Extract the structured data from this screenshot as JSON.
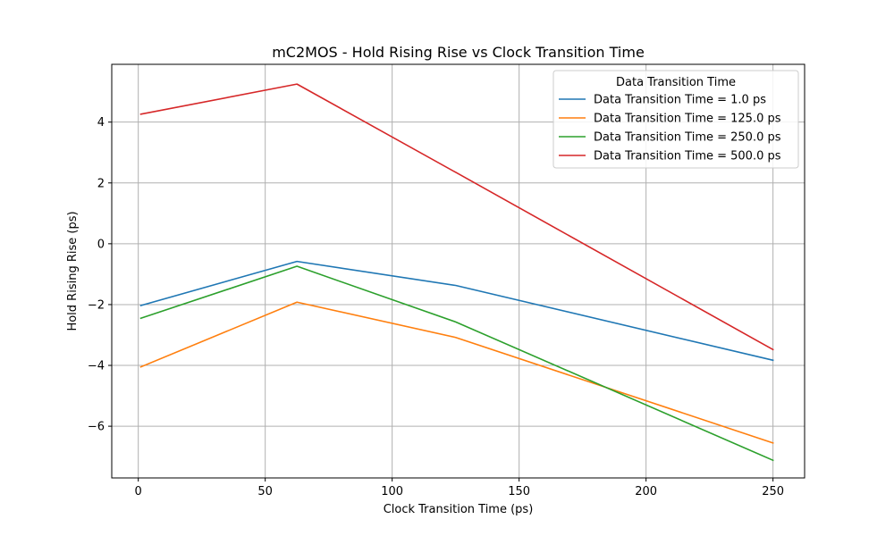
{
  "chart_data": {
    "type": "line",
    "title": "mC2MOS - Hold Rising Rise vs Clock Transition Time",
    "xlabel": "Clock Transition Time (ps)",
    "ylabel": "Hold Rising Rise (ps)",
    "xlim": [
      -10.45,
      262.45
    ],
    "ylim": [
      -7.7,
      5.9
    ],
    "xticks": [
      0,
      50,
      100,
      150,
      200,
      250
    ],
    "yticks": [
      -6,
      -4,
      -2,
      0,
      2,
      4
    ],
    "xtick_labels": [
      "0",
      "50",
      "100",
      "150",
      "200",
      "250"
    ],
    "ytick_labels": [
      "−6",
      "−4",
      "−2",
      "0",
      "2",
      "4"
    ],
    "grid": true,
    "legend_title": "Data Transition Time",
    "legend_position": "top-right",
    "x": [
      1,
      62.5,
      125,
      250
    ],
    "series": [
      {
        "name": "Data Transition Time = 1.0 ps",
        "color": "#1f77b4",
        "values": [
          -2.03,
          -0.58,
          -1.37,
          -3.83
        ]
      },
      {
        "name": "Data Transition Time = 125.0 ps",
        "color": "#ff7f0e",
        "values": [
          -4.05,
          -1.92,
          -3.08,
          -6.55
        ]
      },
      {
        "name": "Data Transition Time = 250.0 ps",
        "color": "#2ca02c",
        "values": [
          -2.45,
          -0.74,
          -2.57,
          -7.12
        ]
      },
      {
        "name": "Data Transition Time = 500.0 ps",
        "color": "#d62728",
        "values": [
          4.26,
          5.25,
          2.35,
          -3.48
        ]
      }
    ]
  }
}
